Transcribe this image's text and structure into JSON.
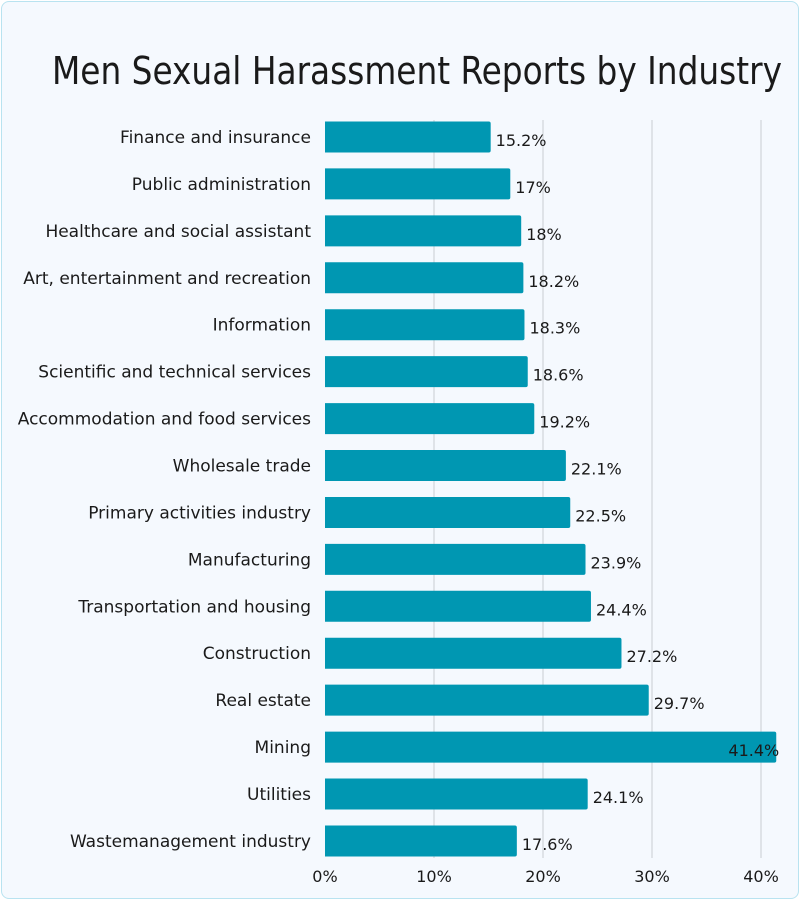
{
  "chart_data": {
    "type": "bar",
    "orientation": "horizontal",
    "title": "Men Sexual Harassment Reports by Industry",
    "categories": [
      "Finance and insurance",
      "Public administration",
      "Healthcare and social assistant",
      "Art, entertainment and recreation",
      "Information",
      "Scientific and technical services",
      "Accommodation and food services",
      "Wholesale trade",
      "Primary activities industry",
      "Manufacturing",
      "Transportation and housing",
      "Construction",
      "Real estate",
      "Mining",
      "Utilities",
      "Wastemanagement industry"
    ],
    "values": [
      15.2,
      17,
      18,
      18.2,
      18.3,
      18.6,
      19.2,
      22.1,
      22.5,
      23.9,
      24.4,
      27.2,
      29.7,
      41.4,
      24.1,
      17.6
    ],
    "value_labels": [
      "15.2%",
      "17%",
      "18%",
      "18.2%",
      "18.3%",
      "18.6%",
      "19.2%",
      "22.1%",
      "22.5%",
      "23.9%",
      "24.4%",
      "27.2%",
      "29.7%",
      "41.4%",
      "24.1%",
      "17.6%"
    ],
    "x_ticks": [
      0,
      10,
      20,
      30,
      40
    ],
    "x_tick_labels": [
      "0%",
      "10%",
      "20%",
      "30%",
      "40%"
    ],
    "xlim": [
      0,
      42
    ],
    "grid": "vertical",
    "bar_color": "#0097b2",
    "grid_color": "#c9cdd3",
    "background": "#f5f9fe"
  }
}
